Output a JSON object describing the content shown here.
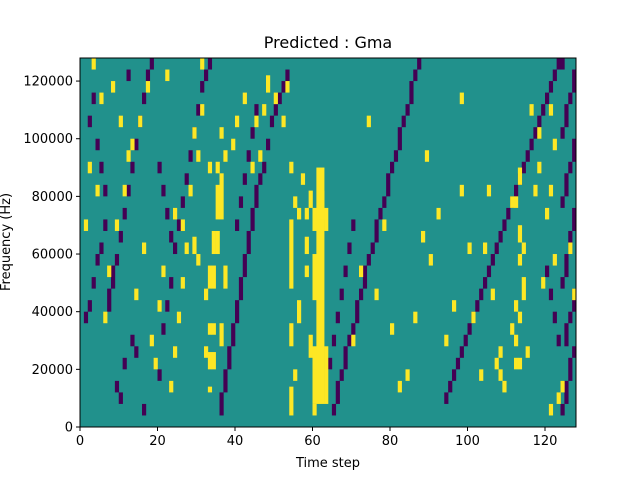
{
  "chart_data": {
    "type": "heatmap",
    "title": "Predicted : Gma",
    "xlabel": "Time step",
    "ylabel": "Frequency (Hz)",
    "xlim": [
      0,
      128
    ],
    "ylim": [
      0,
      128000
    ],
    "x_ticks": [
      0,
      20,
      40,
      60,
      80,
      100,
      120
    ],
    "y_ticks": [
      0,
      20000,
      40000,
      60000,
      80000,
      100000,
      120000
    ],
    "x_tick_labels": [
      "0",
      "20",
      "40",
      "60",
      "80",
      "100",
      "120"
    ],
    "y_tick_labels": [
      "0",
      "20000",
      "40000",
      "60000",
      "80000",
      "100000",
      "120000"
    ],
    "grid": false,
    "legend": "none",
    "n_time": 128,
    "n_freq": 64,
    "freq_bin_hz": 2000,
    "colormap": "viridis",
    "value_colors": {
      "low": "#440154",
      "mid": "#21918c",
      "high": "#fde725"
    },
    "background_value": "mid",
    "high_cells": [
      [
        61,
        4,
        45
      ],
      [
        62,
        4,
        45
      ],
      [
        60,
        4,
        14
      ],
      [
        60,
        22,
        30
      ],
      [
        60,
        34,
        38
      ],
      [
        63,
        4,
        14
      ],
      [
        63,
        34,
        38
      ],
      [
        60,
        2,
        4
      ],
      [
        60,
        10,
        12
      ],
      [
        54,
        2,
        7
      ],
      [
        54,
        14,
        18
      ],
      [
        54,
        24,
        36
      ],
      [
        55,
        8,
        10
      ],
      [
        56,
        18,
        22
      ],
      [
        33,
        10,
        13
      ],
      [
        33,
        16,
        18
      ],
      [
        33,
        24,
        28
      ],
      [
        34,
        10,
        13
      ],
      [
        34,
        16,
        18
      ],
      [
        34,
        24,
        28
      ],
      [
        34,
        30,
        34
      ],
      [
        35,
        30,
        34
      ],
      [
        35,
        36,
        42
      ],
      [
        36,
        36,
        44
      ],
      [
        32,
        22,
        24
      ],
      [
        32,
        12,
        14
      ],
      [
        36,
        14,
        18
      ],
      [
        37,
        24,
        28
      ],
      [
        58,
        26,
        28
      ],
      [
        58,
        30,
        33
      ],
      [
        58,
        36,
        38
      ],
      [
        59,
        12,
        16
      ],
      [
        59,
        38,
        41
      ],
      [
        61,
        36,
        38
      ],
      [
        62,
        36,
        41
      ],
      [
        55,
        38,
        40
      ],
      [
        56,
        36,
        38
      ],
      [
        29,
        30,
        33
      ],
      [
        30,
        28,
        30
      ],
      [
        33,
        6,
        7
      ],
      [
        35,
        44,
        46
      ],
      [
        48,
        58,
        61
      ],
      [
        47,
        54,
        56
      ],
      [
        50,
        56,
        58
      ],
      [
        46,
        46,
        48
      ],
      [
        52,
        52,
        54
      ],
      [
        31,
        62,
        64
      ],
      [
        53,
        58,
        60
      ],
      [
        45,
        52,
        54
      ],
      [
        54,
        44,
        46
      ],
      [
        57,
        42,
        44
      ],
      [
        108,
        8,
        10
      ],
      [
        109,
        6,
        8
      ],
      [
        112,
        10,
        12
      ],
      [
        113,
        10,
        12
      ],
      [
        112,
        14,
        16
      ],
      [
        113,
        18,
        20
      ],
      [
        113,
        28,
        30
      ],
      [
        113,
        32,
        35
      ],
      [
        112,
        38,
        40
      ],
      [
        113,
        42,
        45
      ],
      [
        114,
        22,
        26
      ],
      [
        114,
        30,
        32
      ],
      [
        115,
        12,
        14
      ],
      [
        111,
        16,
        18
      ],
      [
        111,
        38,
        40
      ],
      [
        112,
        20,
        22
      ],
      [
        107,
        10,
        12
      ],
      [
        108,
        12,
        14
      ],
      [
        106,
        22,
        24
      ],
      [
        104,
        30,
        32
      ],
      [
        121,
        2,
        4
      ],
      [
        123,
        4,
        6
      ],
      [
        124,
        6,
        8
      ],
      [
        122,
        28,
        30
      ],
      [
        119,
        24,
        26
      ],
      [
        126,
        30,
        32
      ],
      [
        127,
        22,
        24
      ],
      [
        120,
        36,
        38
      ],
      [
        121,
        40,
        42
      ],
      [
        117,
        40,
        42
      ],
      [
        118,
        44,
        46
      ],
      [
        116,
        54,
        56
      ],
      [
        118,
        50,
        52
      ],
      [
        121,
        54,
        56
      ],
      [
        122,
        48,
        50
      ],
      [
        98,
        56,
        58
      ],
      [
        94,
        14,
        16
      ],
      [
        90,
        28,
        30
      ],
      [
        88,
        32,
        34
      ],
      [
        86,
        18,
        20
      ],
      [
        84,
        8,
        10
      ],
      [
        80,
        16,
        18
      ],
      [
        76,
        22,
        24
      ],
      [
        78,
        34,
        36
      ],
      [
        82,
        6,
        8
      ],
      [
        70,
        14,
        16
      ],
      [
        72,
        26,
        28
      ],
      [
        74,
        52,
        54
      ],
      [
        96,
        20,
        22
      ],
      [
        100,
        30,
        32
      ],
      [
        101,
        18,
        20
      ],
      [
        103,
        8,
        10
      ],
      [
        105,
        40,
        42
      ],
      [
        98,
        40,
        42
      ],
      [
        89,
        46,
        48
      ],
      [
        92,
        36,
        38
      ],
      [
        19,
        10,
        12
      ],
      [
        18,
        14,
        16
      ],
      [
        20,
        20,
        22
      ],
      [
        21,
        26,
        28
      ],
      [
        23,
        6,
        8
      ],
      [
        25,
        18,
        20
      ],
      [
        26,
        34,
        36
      ],
      [
        27,
        30,
        32
      ],
      [
        29,
        50,
        52
      ],
      [
        30,
        46,
        48
      ],
      [
        31,
        54,
        56
      ],
      [
        33,
        44,
        46
      ],
      [
        36,
        50,
        52
      ],
      [
        37,
        46,
        48
      ],
      [
        39,
        48,
        50
      ],
      [
        40,
        52,
        54
      ],
      [
        42,
        56,
        58
      ],
      [
        44,
        44,
        46
      ],
      [
        28,
        40,
        42
      ],
      [
        26,
        24,
        26
      ],
      [
        24,
        12,
        14
      ],
      [
        6,
        18,
        20
      ],
      [
        7,
        26,
        28
      ],
      [
        9,
        34,
        36
      ],
      [
        11,
        40,
        42
      ],
      [
        12,
        46,
        48
      ],
      [
        10,
        52,
        54
      ],
      [
        8,
        58,
        60
      ],
      [
        5,
        56,
        58
      ],
      [
        3,
        62,
        64
      ],
      [
        2,
        44,
        46
      ],
      [
        4,
        40,
        42
      ],
      [
        1,
        34,
        36
      ],
      [
        15,
        52,
        54
      ],
      [
        17,
        58,
        60
      ],
      [
        22,
        60,
        62
      ],
      [
        13,
        48,
        50
      ],
      [
        14,
        22,
        24
      ],
      [
        16,
        30,
        32
      ],
      [
        24,
        36,
        38
      ]
    ],
    "low_cells": [
      [
        1,
        18,
        20
      ],
      [
        2,
        20,
        22
      ],
      [
        3,
        24,
        26
      ],
      [
        4,
        28,
        30
      ],
      [
        5,
        30,
        32
      ],
      [
        6,
        34,
        36
      ],
      [
        7,
        20,
        24
      ],
      [
        8,
        24,
        28
      ],
      [
        9,
        28,
        30
      ],
      [
        10,
        32,
        34
      ],
      [
        11,
        36,
        38
      ],
      [
        12,
        40,
        42
      ],
      [
        13,
        44,
        46
      ],
      [
        14,
        48,
        50
      ],
      [
        15,
        52,
        54
      ],
      [
        16,
        56,
        58
      ],
      [
        17,
        60,
        62
      ],
      [
        18,
        62,
        64
      ],
      [
        2,
        52,
        54
      ],
      [
        3,
        56,
        58
      ],
      [
        4,
        48,
        50
      ],
      [
        5,
        44,
        46
      ],
      [
        6,
        40,
        42
      ],
      [
        12,
        60,
        62
      ],
      [
        11,
        10,
        12
      ],
      [
        10,
        4,
        6
      ],
      [
        9,
        6,
        8
      ],
      [
        13,
        14,
        16
      ],
      [
        14,
        12,
        14
      ],
      [
        16,
        2,
        4
      ],
      [
        20,
        8,
        10
      ],
      [
        21,
        16,
        18
      ],
      [
        22,
        20,
        22
      ],
      [
        23,
        24,
        26
      ],
      [
        24,
        30,
        32
      ],
      [
        25,
        34,
        36
      ],
      [
        26,
        38,
        40
      ],
      [
        27,
        42,
        44
      ],
      [
        28,
        46,
        48
      ],
      [
        29,
        50,
        52
      ],
      [
        30,
        54,
        56
      ],
      [
        31,
        58,
        60
      ],
      [
        32,
        60,
        62
      ],
      [
        33,
        62,
        64
      ],
      [
        20,
        44,
        46
      ],
      [
        21,
        40,
        42
      ],
      [
        22,
        36,
        38
      ],
      [
        23,
        32,
        34
      ],
      [
        36,
        2,
        6
      ],
      [
        37,
        6,
        10
      ],
      [
        38,
        10,
        14
      ],
      [
        39,
        14,
        18
      ],
      [
        40,
        18,
        22
      ],
      [
        41,
        22,
        26
      ],
      [
        42,
        26,
        30
      ],
      [
        43,
        30,
        34
      ],
      [
        44,
        34,
        38
      ],
      [
        45,
        38,
        42
      ],
      [
        46,
        42,
        44
      ],
      [
        47,
        44,
        46
      ],
      [
        48,
        48,
        50
      ],
      [
        49,
        52,
        54
      ],
      [
        50,
        54,
        56
      ],
      [
        51,
        56,
        58
      ],
      [
        52,
        58,
        60
      ],
      [
        53,
        60,
        62
      ],
      [
        40,
        34,
        36
      ],
      [
        41,
        38,
        40
      ],
      [
        42,
        42,
        44
      ],
      [
        43,
        46,
        48
      ],
      [
        44,
        50,
        52
      ],
      [
        45,
        54,
        56
      ],
      [
        65,
        2,
        4
      ],
      [
        66,
        4,
        8
      ],
      [
        67,
        8,
        10
      ],
      [
        68,
        10,
        14
      ],
      [
        69,
        14,
        16
      ],
      [
        70,
        16,
        18
      ],
      [
        71,
        18,
        22
      ],
      [
        72,
        22,
        24
      ],
      [
        73,
        24,
        28
      ],
      [
        74,
        28,
        30
      ],
      [
        75,
        30,
        32
      ],
      [
        76,
        32,
        36
      ],
      [
        77,
        36,
        38
      ],
      [
        78,
        38,
        40
      ],
      [
        79,
        40,
        44
      ],
      [
        80,
        44,
        46
      ],
      [
        81,
        46,
        48
      ],
      [
        82,
        48,
        52
      ],
      [
        83,
        52,
        54
      ],
      [
        84,
        54,
        56
      ],
      [
        85,
        56,
        60
      ],
      [
        86,
        60,
        62
      ],
      [
        87,
        62,
        64
      ],
      [
        64,
        10,
        12
      ],
      [
        65,
        14,
        16
      ],
      [
        66,
        18,
        20
      ],
      [
        67,
        22,
        24
      ],
      [
        68,
        26,
        28
      ],
      [
        69,
        30,
        32
      ],
      [
        70,
        34,
        36
      ],
      [
        94,
        4,
        6
      ],
      [
        95,
        6,
        8
      ],
      [
        96,
        8,
        10
      ],
      [
        97,
        10,
        12
      ],
      [
        98,
        12,
        14
      ],
      [
        99,
        14,
        16
      ],
      [
        100,
        16,
        18
      ],
      [
        101,
        18,
        20
      ],
      [
        102,
        20,
        22
      ],
      [
        103,
        22,
        24
      ],
      [
        104,
        24,
        26
      ],
      [
        105,
        26,
        28
      ],
      [
        106,
        28,
        30
      ],
      [
        107,
        30,
        32
      ],
      [
        108,
        32,
        34
      ],
      [
        109,
        34,
        36
      ],
      [
        110,
        36,
        38
      ],
      [
        111,
        38,
        40
      ],
      [
        112,
        40,
        42
      ],
      [
        113,
        42,
        44
      ],
      [
        114,
        44,
        46
      ],
      [
        115,
        46,
        48
      ],
      [
        116,
        48,
        50
      ],
      [
        117,
        50,
        52
      ],
      [
        118,
        52,
        54
      ],
      [
        119,
        54,
        56
      ],
      [
        120,
        56,
        58
      ],
      [
        121,
        58,
        60
      ],
      [
        122,
        60,
        62
      ],
      [
        123,
        62,
        64
      ],
      [
        124,
        2,
        4
      ],
      [
        125,
        4,
        8
      ],
      [
        126,
        8,
        12
      ],
      [
        127,
        12,
        14
      ],
      [
        125,
        14,
        18
      ],
      [
        126,
        18,
        20
      ],
      [
        127,
        20,
        24
      ],
      [
        124,
        24,
        26
      ],
      [
        125,
        26,
        30
      ],
      [
        126,
        30,
        34
      ],
      [
        127,
        34,
        38
      ],
      [
        124,
        38,
        40
      ],
      [
        125,
        40,
        44
      ],
      [
        126,
        44,
        46
      ],
      [
        127,
        46,
        50
      ],
      [
        124,
        50,
        52
      ],
      [
        125,
        52,
        56
      ],
      [
        126,
        56,
        58
      ],
      [
        127,
        58,
        62
      ],
      [
        124,
        62,
        64
      ],
      [
        123,
        14,
        16
      ],
      [
        122,
        18,
        20
      ],
      [
        121,
        22,
        24
      ],
      [
        120,
        26,
        28
      ]
    ]
  }
}
